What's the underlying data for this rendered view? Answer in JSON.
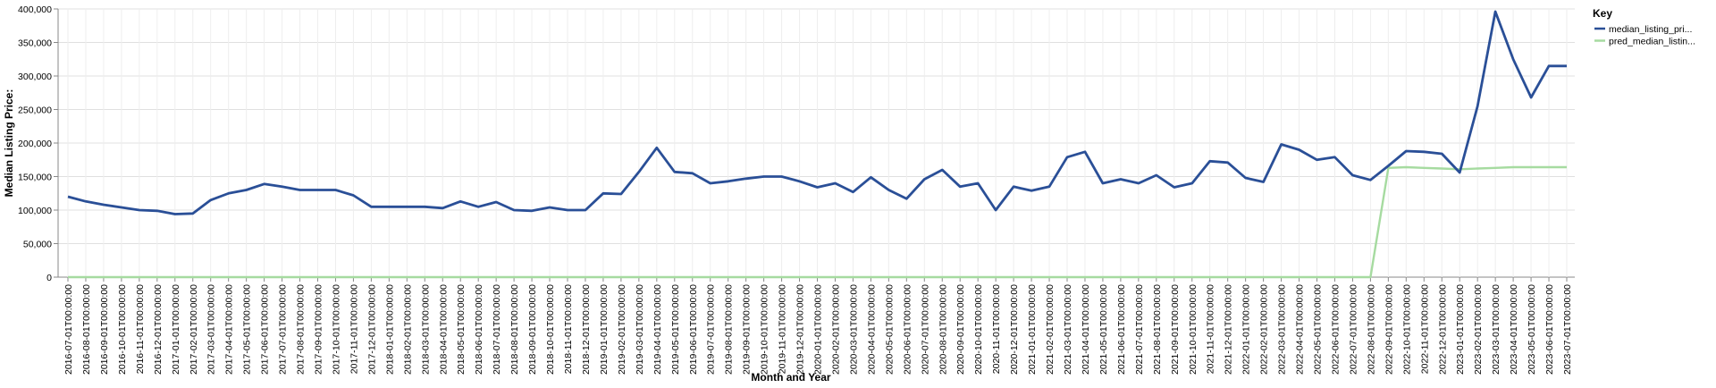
{
  "chart_data": {
    "type": "line",
    "x_label": "Month and Year",
    "y_label": "Median Listing Price:",
    "legend_title": "Key",
    "legend": "right",
    "grid": true,
    "categories": [
      "2016-07-01T00:00:00",
      "2016-08-01T00:00:00",
      "2016-09-01T00:00:00",
      "2016-10-01T00:00:00",
      "2016-11-01T00:00:00",
      "2016-12-01T00:00:00",
      "2017-01-01T00:00:00",
      "2017-02-01T00:00:00",
      "2017-03-01T00:00:00",
      "2017-04-01T00:00:00",
      "2017-05-01T00:00:00",
      "2017-06-01T00:00:00",
      "2017-07-01T00:00:00",
      "2017-08-01T00:00:00",
      "2017-09-01T00:00:00",
      "2017-10-01T00:00:00",
      "2017-11-01T00:00:00",
      "2017-12-01T00:00:00",
      "2018-01-01T00:00:00",
      "2018-02-01T00:00:00",
      "2018-03-01T00:00:00",
      "2018-04-01T00:00:00",
      "2018-05-01T00:00:00",
      "2018-06-01T00:00:00",
      "2018-07-01T00:00:00",
      "2018-08-01T00:00:00",
      "2018-09-01T00:00:00",
      "2018-10-01T00:00:00",
      "2018-11-01T00:00:00",
      "2018-12-01T00:00:00",
      "2019-01-01T00:00:00",
      "2019-02-01T00:00:00",
      "2019-03-01T00:00:00",
      "2019-04-01T00:00:00",
      "2019-05-01T00:00:00",
      "2019-06-01T00:00:00",
      "2019-07-01T00:00:00",
      "2019-08-01T00:00:00",
      "2019-09-01T00:00:00",
      "2019-10-01T00:00:00",
      "2019-11-01T00:00:00",
      "2019-12-01T00:00:00",
      "2020-01-01T00:00:00",
      "2020-02-01T00:00:00",
      "2020-03-01T00:00:00",
      "2020-04-01T00:00:00",
      "2020-05-01T00:00:00",
      "2020-06-01T00:00:00",
      "2020-07-01T00:00:00",
      "2020-08-01T00:00:00",
      "2020-09-01T00:00:00",
      "2020-10-01T00:00:00",
      "2020-11-01T00:00:00",
      "2020-12-01T00:00:00",
      "2021-01-01T00:00:00",
      "2021-02-01T00:00:00",
      "2021-03-01T00:00:00",
      "2021-04-01T00:00:00",
      "2021-05-01T00:00:00",
      "2021-06-01T00:00:00",
      "2021-07-01T00:00:00",
      "2021-08-01T00:00:00",
      "2021-09-01T00:00:00",
      "2021-10-01T00:00:00",
      "2021-11-01T00:00:00",
      "2021-12-01T00:00:00",
      "2022-01-01T00:00:00",
      "2022-02-01T00:00:00",
      "2022-03-01T00:00:00",
      "2022-04-01T00:00:00",
      "2022-05-01T00:00:00",
      "2022-06-01T00:00:00",
      "2022-07-01T00:00:00",
      "2022-08-01T00:00:00",
      "2022-09-01T00:00:00",
      "2022-10-01T00:00:00",
      "2022-11-01T00:00:00",
      "2022-12-01T00:00:00",
      "2023-01-01T00:00:00",
      "2023-02-01T00:00:00",
      "2023-03-01T00:00:00",
      "2023-04-01T00:00:00",
      "2023-05-01T00:00:00",
      "2023-06-01T00:00:00",
      "2023-07-01T00:00:00"
    ],
    "series": [
      {
        "name": "median_listing_pri...",
        "color": "#2a4f97",
        "values": [
          120000,
          113000,
          108000,
          104000,
          100000,
          99000,
          94000,
          95000,
          115000,
          125000,
          130000,
          139000,
          135000,
          130000,
          130000,
          130000,
          122000,
          105000,
          105000,
          105000,
          105000,
          103000,
          113000,
          105000,
          112000,
          100000,
          99000,
          104000,
          100000,
          100000,
          125000,
          124000,
          157000,
          193000,
          157000,
          155000,
          140000,
          143000,
          147000,
          150000,
          150000,
          143000,
          134000,
          140000,
          127000,
          149000,
          130000,
          117000,
          146000,
          160000,
          135000,
          140000,
          100000,
          135000,
          129000,
          135000,
          179000,
          187000,
          140000,
          146000,
          140000,
          152000,
          134000,
          140000,
          173000,
          171000,
          148000,
          142000,
          198000,
          190000,
          175000,
          179000,
          152000,
          145000,
          166000,
          188000,
          187000,
          184000,
          156000,
          255000,
          396000,
          325000,
          268000,
          315000,
          315000
        ]
      },
      {
        "name": "pred_median_listin...",
        "color": "#a6dba0",
        "values": [
          0,
          0,
          0,
          0,
          0,
          0,
          0,
          0,
          0,
          0,
          0,
          0,
          0,
          0,
          0,
          0,
          0,
          0,
          0,
          0,
          0,
          0,
          0,
          0,
          0,
          0,
          0,
          0,
          0,
          0,
          0,
          0,
          0,
          0,
          0,
          0,
          0,
          0,
          0,
          0,
          0,
          0,
          0,
          0,
          0,
          0,
          0,
          0,
          0,
          0,
          0,
          0,
          0,
          0,
          0,
          0,
          0,
          0,
          0,
          0,
          0,
          0,
          0,
          0,
          0,
          0,
          0,
          0,
          0,
          0,
          0,
          0,
          0,
          0,
          163000,
          164000,
          163000,
          162000,
          161000,
          162000,
          163000,
          164000,
          164000,
          164000,
          164000
        ]
      }
    ],
    "ylim": [
      0,
      400000
    ],
    "yticks": [
      0,
      {
        "value": 50000,
        "label": "50,000"
      },
      {
        "value": 100000,
        "label": "100,000"
      },
      {
        "value": 150000,
        "label": "150,000"
      },
      {
        "value": 200000,
        "label": "200,000"
      },
      {
        "value": 250000,
        "label": "250,000"
      },
      {
        "value": 300000,
        "label": "300,000"
      },
      {
        "value": 350000,
        "label": "350,000"
      },
      {
        "value": 400000,
        "label": "400,000"
      }
    ]
  }
}
